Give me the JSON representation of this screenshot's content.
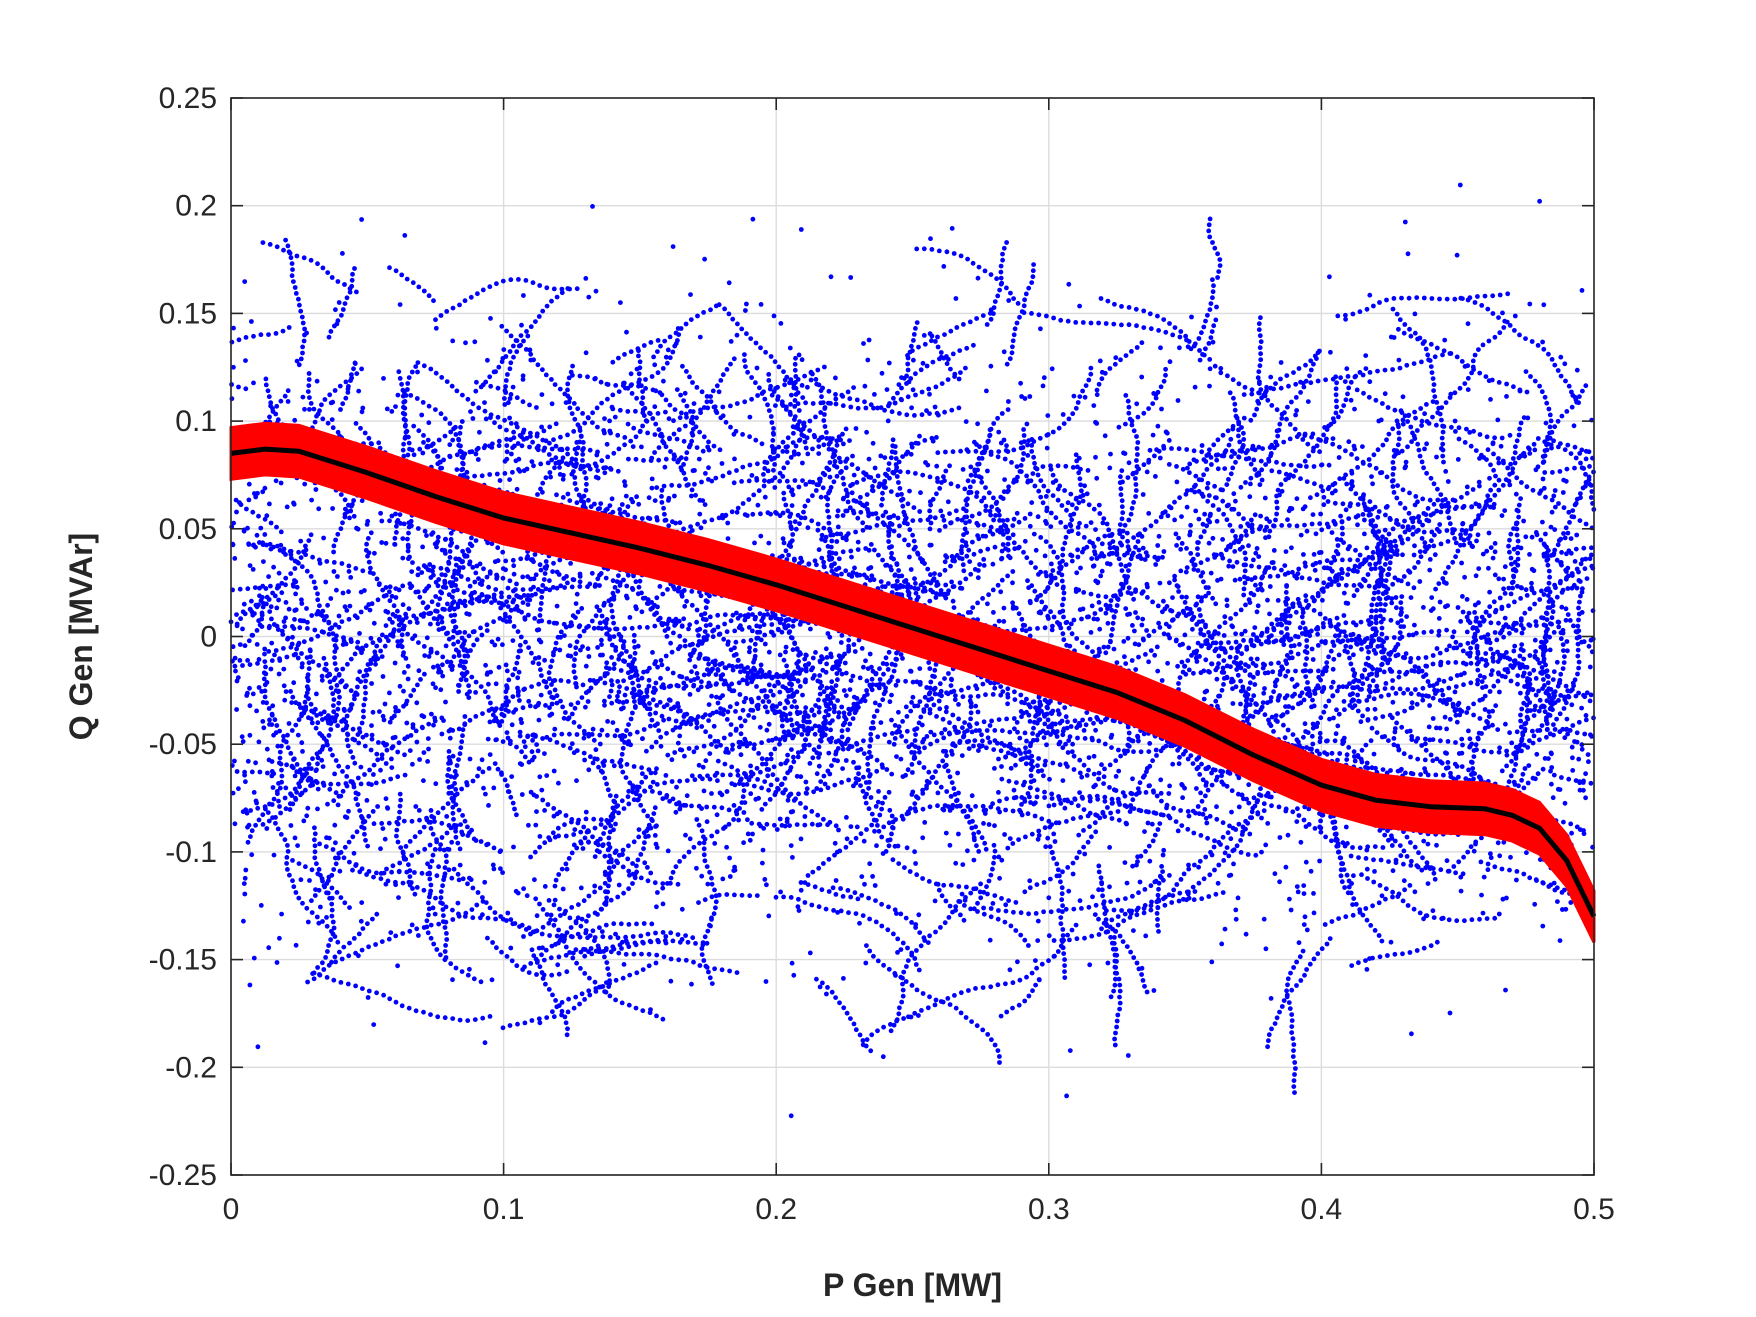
{
  "chart_data": {
    "type": "scatter",
    "title": "",
    "xlabel": "P Gen [MW]",
    "ylabel": "Q Gen [MVAr]",
    "xlim": [
      0,
      0.5
    ],
    "ylim": [
      -0.25,
      0.25
    ],
    "xticks": [
      0,
      0.1,
      0.2,
      0.3,
      0.4,
      0.5
    ],
    "xtick_labels": [
      "0",
      "0.1",
      "0.2",
      "0.3",
      "0.4",
      "0.5"
    ],
    "yticks": [
      0.25,
      0.2,
      0.15,
      0.1,
      0.05,
      0,
      -0.05,
      -0.1,
      -0.15,
      -0.2,
      -0.25
    ],
    "ytick_labels": [
      "0.25",
      "0.2",
      "0.15",
      "0.1",
      "0.05",
      "0",
      "-0.05",
      "-0.1",
      "-0.15",
      "-0.2",
      "-0.25"
    ],
    "grid": true,
    "legend": "none",
    "scatter_cloud": {
      "color": "#0000ff",
      "x_range": [
        0,
        0.5
      ],
      "y_range": [
        -0.25,
        0.235
      ],
      "density_center": [
        0.25,
        0.0
      ]
    },
    "band": {
      "color": "#ff0000",
      "half_width": 0.012,
      "x": [
        0.0,
        0.0125,
        0.025,
        0.05,
        0.075,
        0.1,
        0.125,
        0.15,
        0.175,
        0.2,
        0.225,
        0.25,
        0.275,
        0.3,
        0.325,
        0.35,
        0.375,
        0.4,
        0.42,
        0.44,
        0.46,
        0.47,
        0.48,
        0.49,
        0.5
      ],
      "upper": [
        0.097,
        0.099,
        0.098,
        0.088,
        0.077,
        0.067,
        0.06,
        0.053,
        0.045,
        0.036,
        0.026,
        0.016,
        0.006,
        -0.004,
        -0.014,
        -0.027,
        -0.043,
        -0.057,
        -0.064,
        -0.067,
        -0.068,
        -0.071,
        -0.077,
        -0.092,
        -0.118
      ],
      "lower": [
        0.073,
        0.075,
        0.074,
        0.064,
        0.053,
        0.043,
        0.036,
        0.029,
        0.021,
        0.012,
        0.002,
        -0.008,
        -0.018,
        -0.028,
        -0.038,
        -0.051,
        -0.067,
        -0.081,
        -0.088,
        -0.091,
        -0.092,
        -0.095,
        -0.101,
        -0.116,
        -0.142
      ]
    },
    "fit_line": {
      "color": "#000000",
      "x": [
        0.0,
        0.0125,
        0.025,
        0.05,
        0.075,
        0.1,
        0.125,
        0.15,
        0.175,
        0.2,
        0.225,
        0.25,
        0.275,
        0.3,
        0.325,
        0.35,
        0.375,
        0.4,
        0.42,
        0.44,
        0.46,
        0.47,
        0.48,
        0.49,
        0.5
      ],
      "y": [
        0.085,
        0.087,
        0.086,
        0.076,
        0.065,
        0.055,
        0.048,
        0.041,
        0.033,
        0.024,
        0.014,
        0.004,
        -0.006,
        -0.016,
        -0.026,
        -0.039,
        -0.055,
        -0.069,
        -0.076,
        -0.079,
        -0.08,
        -0.083,
        -0.089,
        -0.104,
        -0.13
      ]
    }
  }
}
